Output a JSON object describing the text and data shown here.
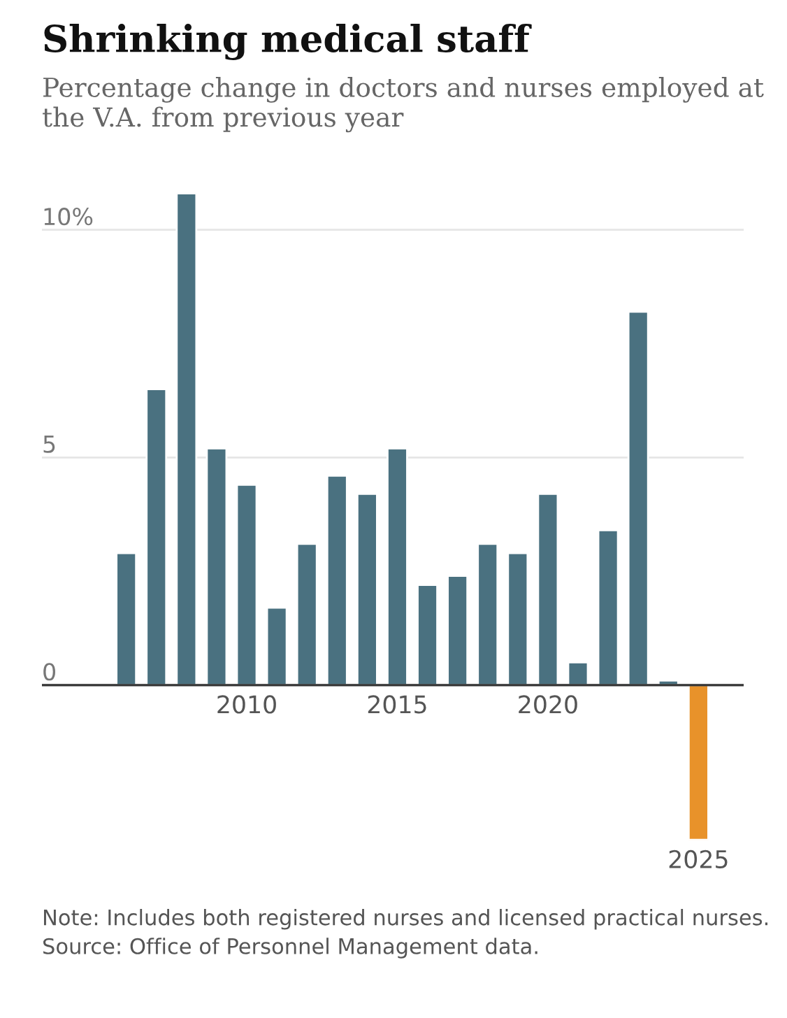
{
  "chart_data": {
    "type": "bar",
    "title": "Shrinking medical staff",
    "subtitle": "Percentage change in doctors and nurses employed at the V.A. from previous year",
    "categories": [
      null,
      null,
      null,
      null,
      "2010",
      null,
      null,
      null,
      null,
      "2015",
      null,
      null,
      null,
      null,
      "2020",
      null,
      null,
      null,
      null,
      "2025"
    ],
    "values": [
      2.9,
      6.5,
      10.8,
      5.2,
      4.4,
      1.7,
      3.1,
      4.6,
      4.2,
      5.2,
      2.2,
      2.4,
      3.1,
      2.9,
      4.2,
      0.5,
      3.4,
      8.2,
      0.1,
      -3.4
    ],
    "colors": [
      "#4a7180",
      "#4a7180",
      "#4a7180",
      "#4a7180",
      "#4a7180",
      "#4a7180",
      "#4a7180",
      "#4a7180",
      "#4a7180",
      "#4a7180",
      "#4a7180",
      "#4a7180",
      "#4a7180",
      "#4a7180",
      "#4a7180",
      "#4a7180",
      "#4a7180",
      "#4a7180",
      "#4a7180",
      "#e8922a"
    ],
    "yticks": [
      0,
      5,
      {
        "value": 10,
        "label": "10%"
      }
    ],
    "ylim": [
      -3.4,
      10.8
    ],
    "grid": "y",
    "annotations": [
      "Note: Includes both registered nurses and licensed practical nurses.  Source: Office of Personnel Management data."
    ]
  }
}
